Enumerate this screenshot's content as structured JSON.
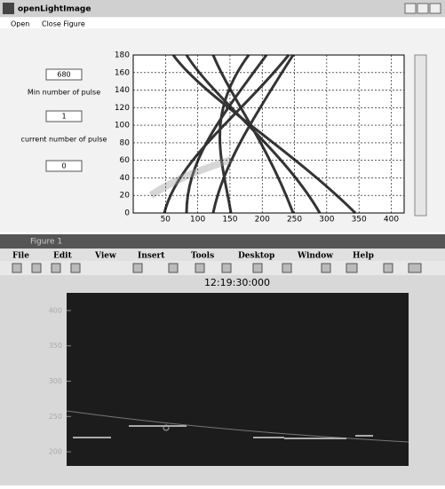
{
  "top_window": {
    "title": "openLightImage",
    "menu": [
      "Open",
      "Close Figure"
    ],
    "fields": [
      {
        "value": "680"
      },
      {
        "label": "Min number of pulse",
        "value": "1"
      },
      {
        "label": "current number of pulse",
        "value": "0"
      }
    ],
    "plot": {
      "xlim": [
        0,
        420
      ],
      "ylim": [
        0,
        180
      ],
      "xticks": [
        50,
        100,
        150,
        200,
        250,
        300,
        350,
        400
      ],
      "yticks": [
        0,
        20,
        40,
        60,
        80,
        100,
        120,
        140,
        160,
        180
      ],
      "grid": true
    }
  },
  "bottom_window": {
    "title": "Figure 1",
    "menu": [
      "File",
      "Edit",
      "View",
      "Insert",
      "Tools",
      "Desktop",
      "Window",
      "Help"
    ],
    "plot": {
      "title": "12:19:30:000",
      "ylim": [
        180,
        425
      ],
      "yticks": [
        200,
        250,
        300,
        350,
        400
      ]
    }
  }
}
